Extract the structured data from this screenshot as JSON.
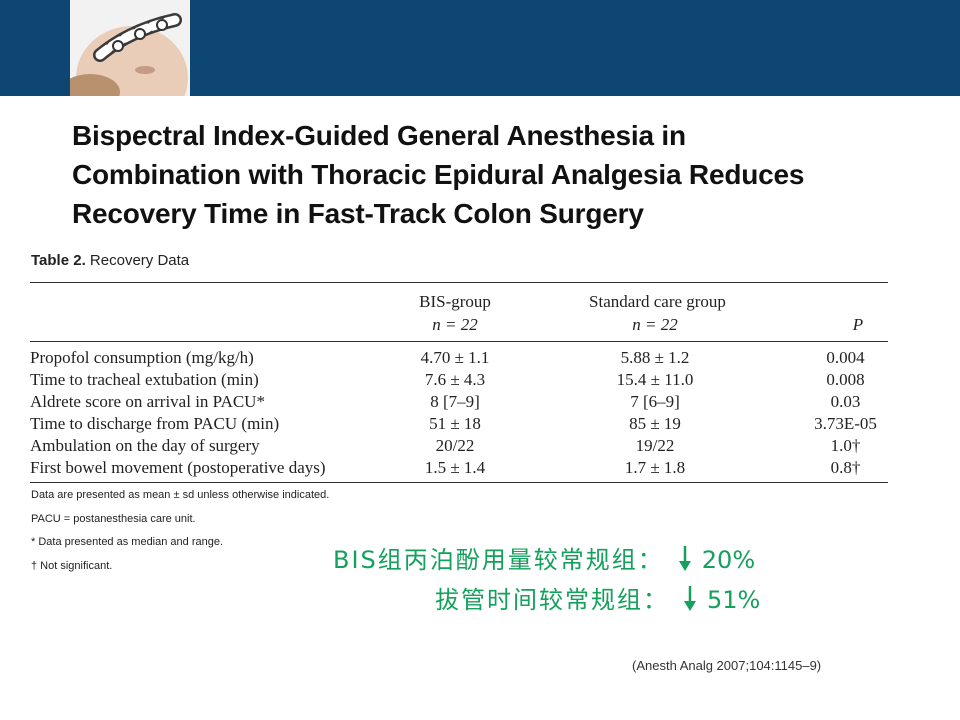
{
  "header": {
    "color": "#0d4573"
  },
  "title_lines": [
    "Bispectral Index-Guided General Anesthesia in",
    "Combination with Thoracic Epidural Analgesia Reduces",
    "Recovery Time in Fast-Track Colon Surgery"
  ],
  "table": {
    "caption_label": "Table 2.",
    "caption_text": "Recovery Data",
    "col_bis": "BIS-group",
    "col_bis_n": "n = 22",
    "col_std": "Standard care group",
    "col_std_n": "n = 22",
    "col_p": "P",
    "rows": [
      {
        "label": "Propofol consumption (mg/kg/h)",
        "bis": "4.70 ± 1.1",
        "std": "5.88 ± 1.2",
        "p": "0.004"
      },
      {
        "label": "Time to tracheal extubation (min)",
        "bis": "7.6 ± 4.3",
        "std": "15.4 ± 11.0",
        "p": "0.008"
      },
      {
        "label": "Aldrete score on arrival in PACU*",
        "bis": "8 [7–9]",
        "std": "7 [6–9]",
        "p": "0.03"
      },
      {
        "label": "Time to discharge from PACU (min)",
        "bis": "51 ± 18",
        "std": "85 ± 19",
        "p": "3.73E-05"
      },
      {
        "label": "Ambulation on the day of surgery",
        "bis": "20/22",
        "std": "19/22",
        "p": "1.0†"
      },
      {
        "label": "First bowel movement (postoperative days)",
        "bis": "1.5 ± 1.4",
        "std": "1.7 ± 1.8",
        "p": "0.8†"
      }
    ]
  },
  "notes": [
    "Data are presented as mean ± sd unless otherwise indicated.",
    "PACU = postanesthesia care unit.",
    "* Data presented as median and range.",
    "† Not significant."
  ],
  "summary": {
    "line1_label": "BIS组丙泊酚用量较常规组：",
    "line1_value": "20%",
    "line2_label": "拔管时间较常规组：",
    "line2_value": "51%",
    "color": "#15a05c"
  },
  "citation": "(Anesth Analg 2007;104:1145–9)"
}
